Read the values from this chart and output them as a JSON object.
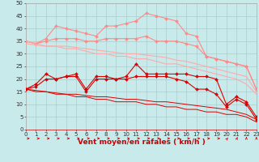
{
  "x": [
    0,
    1,
    2,
    3,
    4,
    5,
    6,
    7,
    8,
    9,
    10,
    11,
    12,
    13,
    14,
    15,
    16,
    17,
    18,
    19,
    20,
    21,
    22,
    23
  ],
  "series": [
    {
      "name": "line1_pink_upper_marked",
      "color": "#ff8888",
      "lw": 0.8,
      "marker": "D",
      "markersize": 2.0,
      "y": [
        35,
        34,
        36,
        41,
        40,
        39,
        38,
        37,
        41,
        41,
        42,
        43,
        46,
        45,
        44,
        43,
        38,
        37,
        29,
        28,
        27,
        26,
        25,
        16
      ]
    },
    {
      "name": "line2_pink_upper_marked2",
      "color": "#ff8888",
      "lw": 0.8,
      "marker": "D",
      "markersize": 2.0,
      "y": [
        35,
        34,
        35,
        36,
        36,
        36,
        35,
        35,
        36,
        36,
        36,
        36,
        37,
        35,
        35,
        35,
        34,
        33,
        29,
        28,
        27,
        26,
        25,
        16
      ]
    },
    {
      "name": "line3_pink_plain1",
      "color": "#ffaaaa",
      "lw": 0.8,
      "marker": null,
      "markersize": 0,
      "y": [
        34,
        33.5,
        33,
        33,
        33,
        32.5,
        32,
        31.5,
        31,
        30.5,
        30,
        30,
        29.5,
        29,
        28.5,
        27.5,
        27,
        26,
        25,
        24,
        23,
        22,
        21,
        15
      ]
    },
    {
      "name": "line4_pink_plain2",
      "color": "#ffaaaa",
      "lw": 0.8,
      "marker": null,
      "markersize": 0,
      "y": [
        35,
        34,
        33,
        33,
        32,
        32,
        31,
        30,
        30,
        29,
        29,
        28,
        28,
        27,
        26,
        26,
        25,
        24,
        23,
        22,
        21,
        20,
        18,
        14
      ]
    },
    {
      "name": "line5_red_upper_marked",
      "color": "#dd0000",
      "lw": 0.8,
      "marker": "D",
      "markersize": 2.0,
      "y": [
        16,
        18,
        22,
        20,
        21,
        22,
        16,
        21,
        21,
        20,
        21,
        26,
        22,
        22,
        22,
        22,
        22,
        21,
        21,
        20,
        10,
        13,
        11,
        5
      ]
    },
    {
      "name": "line6_red_middle_marked",
      "color": "#dd0000",
      "lw": 0.8,
      "marker": "D",
      "markersize": 2.0,
      "y": [
        16,
        17,
        20,
        20,
        21,
        21,
        15,
        20,
        20,
        20,
        20,
        21,
        21,
        21,
        21,
        20,
        19,
        16,
        16,
        14,
        9,
        12,
        10,
        4
      ]
    },
    {
      "name": "line7_red_plain1",
      "color": "#dd0000",
      "lw": 0.7,
      "marker": null,
      "markersize": 0,
      "y": [
        16,
        15.5,
        15,
        14.5,
        14,
        14,
        13.5,
        13,
        13,
        12.5,
        12,
        12,
        11.5,
        11,
        11,
        10.5,
        10,
        9.5,
        9,
        8.5,
        8,
        7,
        6,
        4
      ]
    },
    {
      "name": "line8_red_plain2",
      "color": "#dd0000",
      "lw": 0.7,
      "marker": null,
      "markersize": 0,
      "y": [
        16,
        15,
        15,
        14,
        14,
        13,
        13,
        12,
        12,
        11,
        11,
        11,
        10,
        10,
        9,
        9,
        8,
        8,
        7,
        7,
        6,
        6,
        5,
        3
      ]
    }
  ],
  "xlabel": "Vent moyen/en rafales ( km/h )",
  "xlim": [
    0,
    23
  ],
  "ylim": [
    0,
    50
  ],
  "yticks": [
    0,
    5,
    10,
    15,
    20,
    25,
    30,
    35,
    40,
    45,
    50
  ],
  "xticks": [
    0,
    1,
    2,
    3,
    4,
    5,
    6,
    7,
    8,
    9,
    10,
    11,
    12,
    13,
    14,
    15,
    16,
    17,
    18,
    19,
    20,
    21,
    22,
    23
  ],
  "bg_color": "#c8eaea",
  "grid_color": "#aacccc",
  "arrow_color": "#dd0000",
  "xlabel_fontsize": 6.5,
  "tick_fontsize": 5.0
}
